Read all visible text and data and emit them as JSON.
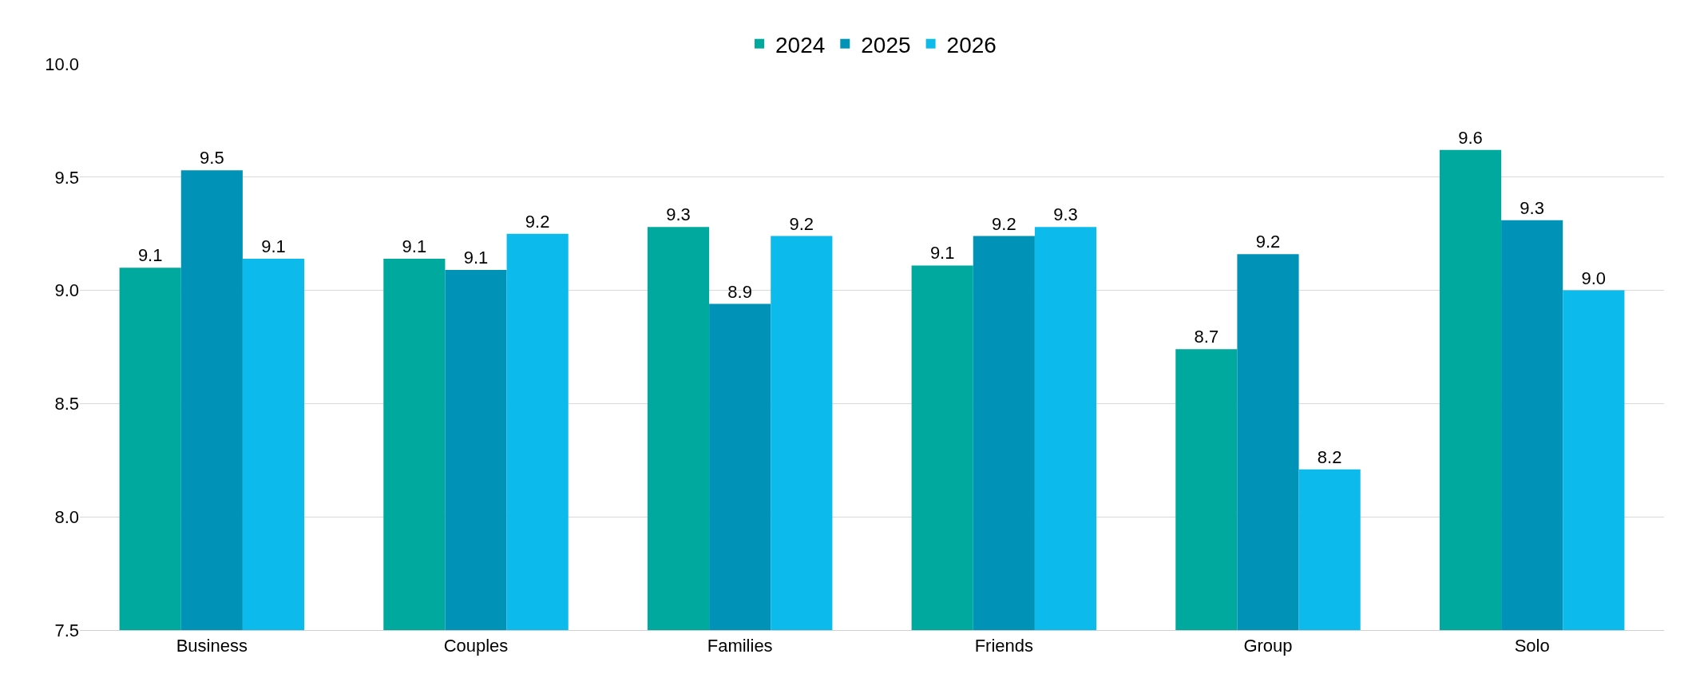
{
  "chart_data": {
    "type": "bar",
    "categories": [
      "Business",
      "Couples",
      "Families",
      "Friends",
      "Group",
      "Solo"
    ],
    "series": [
      {
        "name": "2024",
        "color": "#00a99d",
        "values": [
          9.1,
          9.14,
          9.28,
          9.11,
          8.74,
          9.62
        ],
        "value_labels": [
          "9.1",
          "9.1",
          "9.3",
          "9.1",
          "8.7",
          "9.6"
        ]
      },
      {
        "name": "2025",
        "color": "#0093b8",
        "values": [
          9.53,
          9.09,
          8.94,
          9.24,
          9.16,
          9.31
        ],
        "value_labels": [
          "9.5",
          "9.1",
          "8.9",
          "9.2",
          "9.2",
          "9.3"
        ]
      },
      {
        "name": "2026",
        "color": "#0cbbeb",
        "values": [
          9.14,
          9.25,
          9.24,
          9.28,
          8.21,
          9.0
        ],
        "value_labels": [
          "9.1",
          "9.2",
          "9.2",
          "9.3",
          "8.2",
          "9.0"
        ]
      }
    ],
    "ylim": [
      7.5,
      10.0
    ],
    "yticks": [
      {
        "value": 7.5,
        "label": "7.5"
      },
      {
        "value": 8.0,
        "label": "8.0"
      },
      {
        "value": 8.5,
        "label": "8.5"
      },
      {
        "value": 9.0,
        "label": "9.0"
      },
      {
        "value": 9.5,
        "label": "9.5"
      },
      {
        "value": 10.0,
        "label": "10.0"
      }
    ],
    "grid": "y",
    "legend": "top"
  }
}
